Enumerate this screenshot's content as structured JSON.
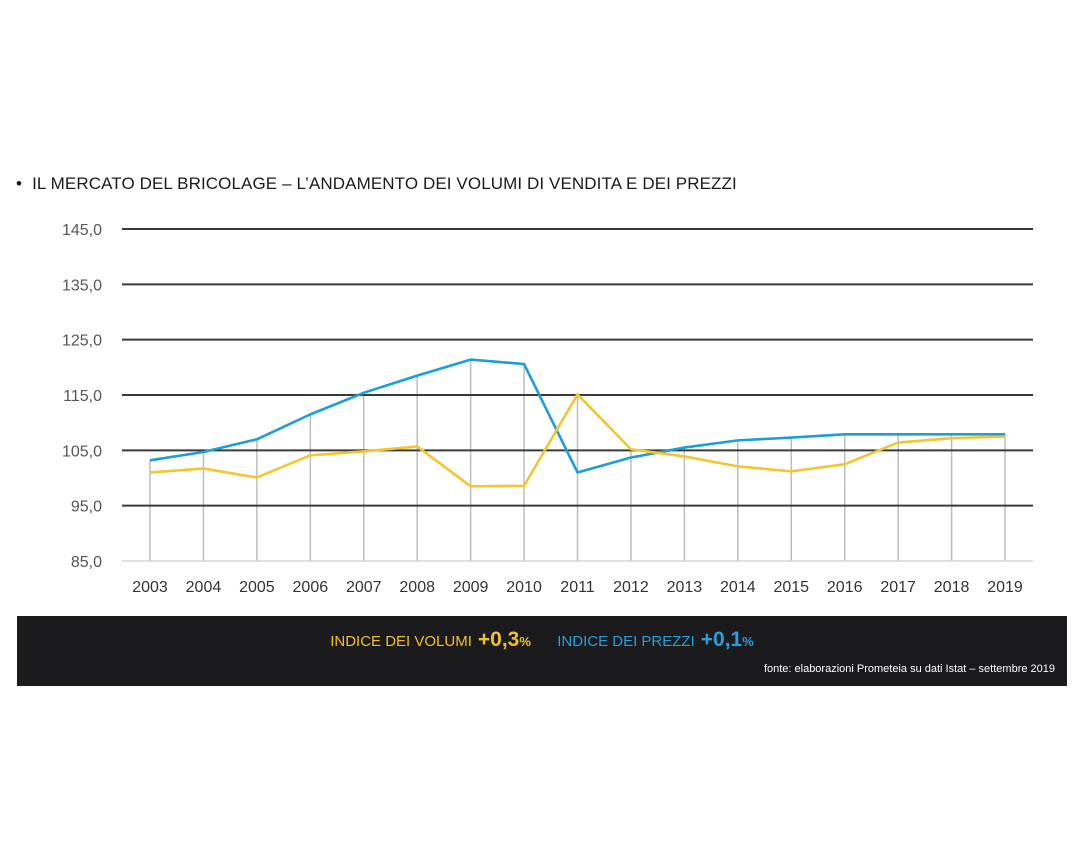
{
  "title": "IL MERCATO DEL BRICOLAGE – L’ANDAMENTO DEI VOLUMI DI VENDITA E DEI PREZZI",
  "bullet": "•",
  "legend": {
    "volumi_label": "INDICE DEI VOLUMI",
    "volumi_value": "+0,3",
    "prezzi_label": "INDICE DEI PREZZI",
    "prezzi_value": "+0,1",
    "percent": "%"
  },
  "source": "fonte: elaborazioni Prometeia su dati Istat – settembre 2019",
  "chart_data": {
    "type": "line",
    "title": "IL MERCATO DEL BRICOLAGE – L’ANDAMENTO DEI VOLUMI DI VENDITA E DEI PREZZI",
    "x": [
      "2003",
      "2004",
      "2005",
      "2006",
      "2007",
      "2008",
      "2009",
      "2010",
      "2011",
      "2012",
      "2013",
      "2014",
      "2015",
      "2016",
      "2017",
      "2018",
      "2019"
    ],
    "ylim": [
      85,
      145
    ],
    "yticks": [
      "85,0",
      "95,0",
      "105,0",
      "115,0",
      "125,0",
      "135,0",
      "145,0"
    ],
    "ytick_values": [
      85,
      95,
      105,
      115,
      125,
      135,
      145
    ],
    "grid": true,
    "series": [
      {
        "name": "INDICE DEI PREZZI",
        "color": "#1a9fd6",
        "values": [
          103.2,
          104.7,
          107.0,
          111.5,
          115.4,
          118.5,
          121.4,
          120.6,
          101.0,
          103.7,
          105.5,
          106.8,
          107.3,
          107.9,
          107.9,
          107.9,
          107.9
        ]
      },
      {
        "name": "INDICE DEI VOLUMI",
        "color": "#f2c531",
        "values": [
          101.0,
          101.7,
          100.1,
          104.1,
          104.8,
          105.7,
          98.5,
          98.6,
          115.1,
          105.2,
          103.9,
          102.1,
          101.2,
          102.5,
          106.4,
          107.2,
          107.5
        ]
      }
    ]
  }
}
